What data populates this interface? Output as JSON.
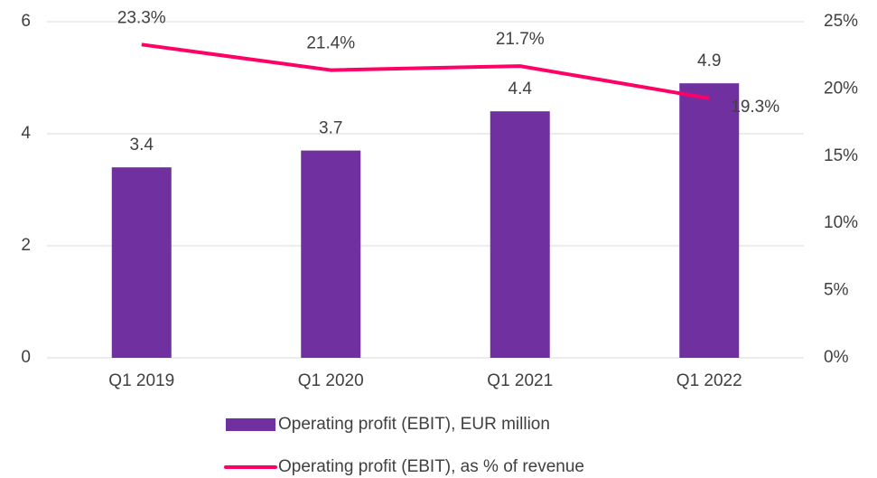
{
  "chart_data": {
    "type": "bar",
    "categories": [
      "Q1 2019",
      "Q1 2020",
      "Q1 2021",
      "Q1 2022"
    ],
    "series": [
      {
        "name": "Operating profit (EBIT), EUR million",
        "type": "bar",
        "color": "#7030a0",
        "values": [
          3.4,
          3.7,
          4.4,
          4.9
        ]
      },
      {
        "name": "Operating profit (EBIT), as % of revenue",
        "type": "line",
        "axis": "y2",
        "color": "#ff0066",
        "values": [
          23.3,
          21.4,
          21.7,
          19.3
        ],
        "value_labels": [
          "23.3%",
          "21.4%",
          "21.7%",
          "19.3%"
        ]
      }
    ],
    "ylim": [
      0,
      6
    ],
    "yticks": [
      0,
      2,
      4,
      6
    ],
    "y2lim": [
      0,
      25
    ],
    "y2ticks": [
      {
        "value": 0,
        "label": "0%"
      },
      {
        "value": 5,
        "label": "5%"
      },
      {
        "value": 10,
        "label": "10%"
      },
      {
        "value": 15,
        "label": "15%"
      },
      {
        "value": 20,
        "label": "20%"
      },
      {
        "value": 25,
        "label": "25%"
      }
    ],
    "grid": true,
    "legend": "bottom"
  }
}
